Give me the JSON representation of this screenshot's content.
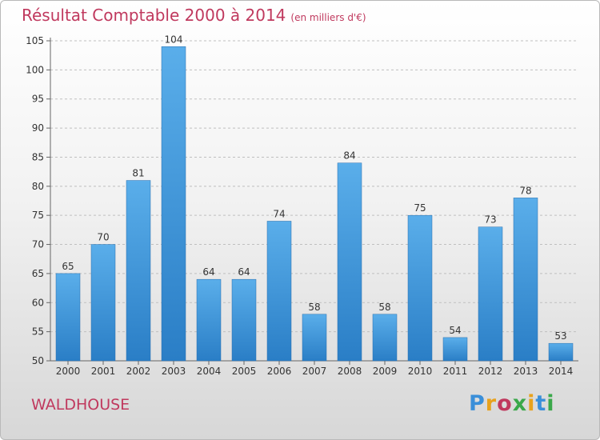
{
  "title": "Résultat Comptable 2000 à 2014",
  "unit": "(en milliers d'€)",
  "commune": "WALDHOUSE",
  "logo": "Proxiti",
  "colors": {
    "title": "#c0395e",
    "bar_top": "#5aaeea",
    "bar_bottom": "#2a7ec6"
  },
  "chart_data": {
    "type": "bar",
    "categories": [
      "2000",
      "2001",
      "2002",
      "2003",
      "2004",
      "2005",
      "2006",
      "2007",
      "2008",
      "2009",
      "2010",
      "2011",
      "2012",
      "2013",
      "2014"
    ],
    "values": [
      65,
      70,
      81,
      104,
      64,
      64,
      74,
      58,
      84,
      58,
      75,
      54,
      73,
      78,
      53
    ],
    "title": "Résultat Comptable 2000 à 2014",
    "xlabel": "",
    "ylabel": "",
    "ylim": [
      50,
      105
    ],
    "yticks": [
      50,
      55,
      60,
      65,
      70,
      75,
      80,
      85,
      90,
      95,
      100,
      105
    ],
    "grid": true
  }
}
